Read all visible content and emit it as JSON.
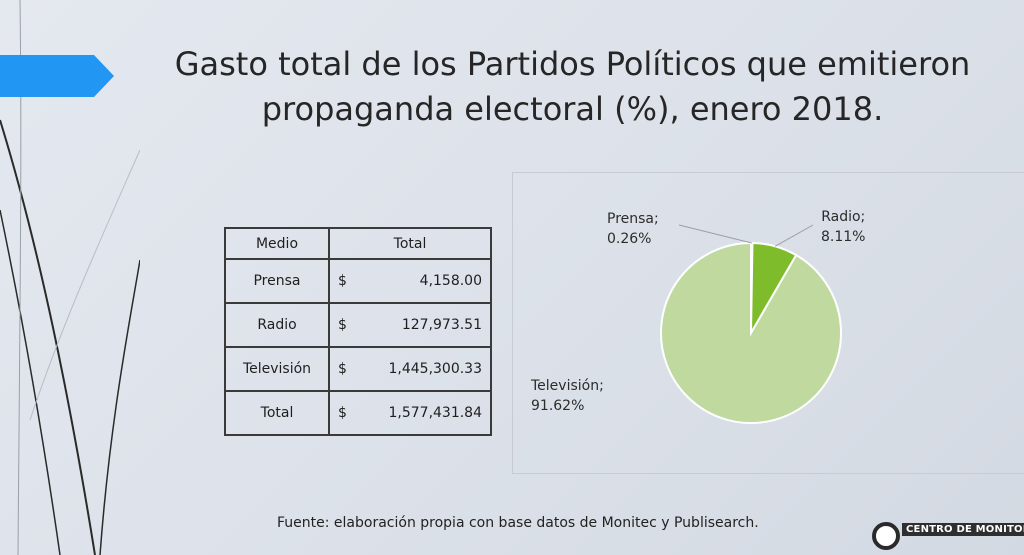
{
  "title_line1": "Gasto total de los Partidos Políticos que emitieron",
  "title_line2": "propaganda electoral (%), enero 2018.",
  "table": {
    "headers": [
      "Medio",
      "Total"
    ],
    "rows": [
      {
        "medio": "Prensa",
        "currency": "$",
        "total": "4,158.00"
      },
      {
        "medio": "Radio",
        "currency": "$",
        "total": "127,973.51"
      },
      {
        "medio": "Televisión",
        "currency": "$",
        "total": "1,445,300.33"
      },
      {
        "medio": "Total",
        "currency": "$",
        "total": "1,577,431.84"
      }
    ]
  },
  "chart_data": {
    "type": "pie",
    "categories": [
      "Prensa",
      "Radio",
      "Televisión"
    ],
    "values": [
      0.26,
      8.11,
      91.62
    ],
    "labels": [
      {
        "name": "Prensa;",
        "pct": "0.26%"
      },
      {
        "name": "Radio;",
        "pct": "8.11%"
      },
      {
        "name": "Televisión;",
        "pct": "91.62%"
      }
    ],
    "colors": [
      "#a4cf66",
      "#7fbc2b",
      "#bfd99e"
    ]
  },
  "source": "Fuente: elaboración propia con base datos de Monitec y Publisearch.",
  "logo_text": "CENTRO DE MONITOREO"
}
